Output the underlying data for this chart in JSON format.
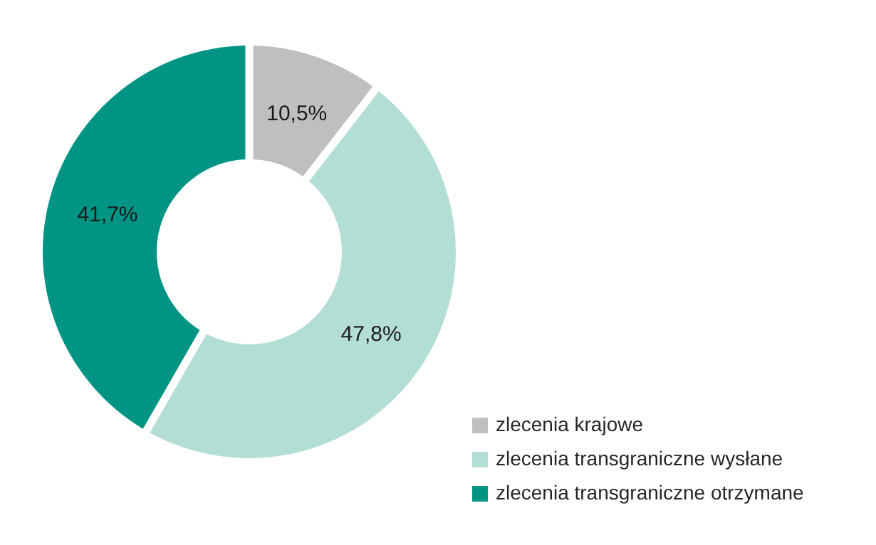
{
  "chart_data": {
    "type": "donut",
    "categories": [
      "zlecenia krajowe",
      "zlecenia transgraniczne wysłane",
      "zlecenia transgraniczne otrzymane"
    ],
    "values": [
      10.5,
      47.8,
      41.7
    ],
    "colors": [
      "#bfbfbf",
      "#b3ded6",
      "#009484"
    ],
    "value_labels": [
      "10,5%",
      "47,8%",
      "41,7%"
    ],
    "legend": "bottom right"
  }
}
